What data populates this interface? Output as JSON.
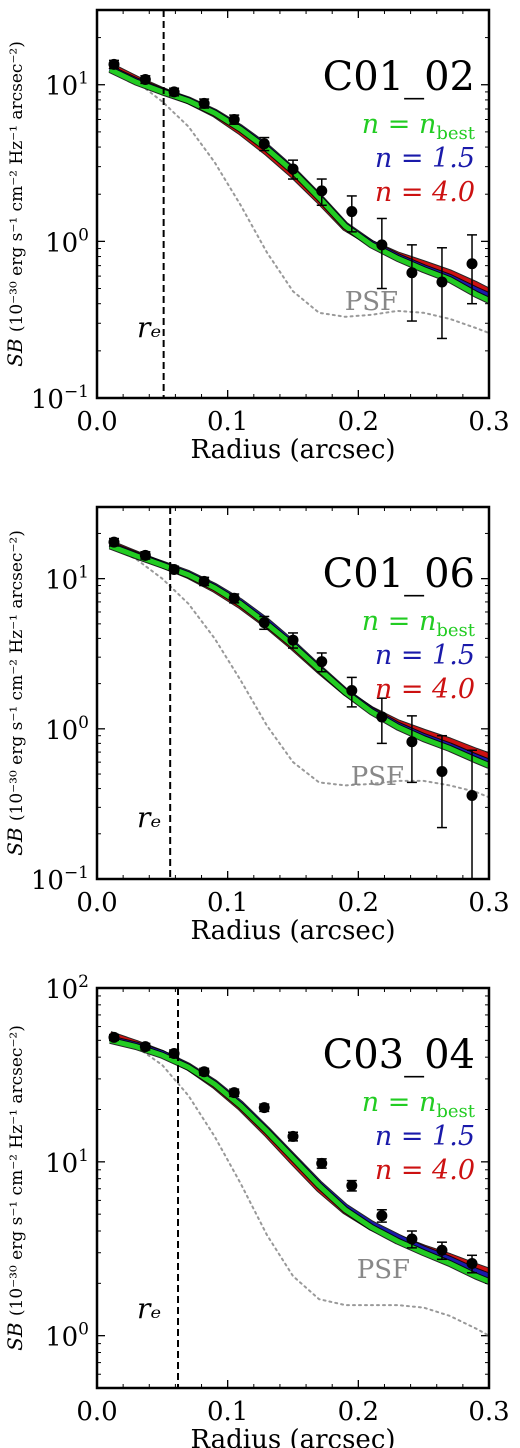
{
  "chart_data": [
    {
      "type": "line",
      "panel_label": "C01_02",
      "xlabel": "Radius (arcsec)",
      "ylabel_main": "SB",
      "ylabel_units": "(10⁻³⁰ erg s⁻¹ cm⁻² Hz⁻¹ arcsec⁻²)",
      "xlim": [
        0.0,
        0.3
      ],
      "ylim": [
        0.1,
        30
      ],
      "yscale": "log",
      "xticks": [
        0.0,
        0.1,
        0.2,
        0.3
      ],
      "xtick_labels": [
        "0.0",
        "0.1",
        "0.2",
        "0.3"
      ],
      "yticks": [
        0.1,
        1,
        10
      ],
      "ytick_labels": [
        "10⁻¹",
        "10⁰",
        "10¹"
      ],
      "re": 0.051,
      "re_label": "rₑ",
      "psf_label": "PSF",
      "legend": [
        "n = n_best",
        "n = 1.5",
        "n = 4.0"
      ],
      "legend_colors": [
        "#22cc22",
        "#1a1aaa",
        "#cc1111"
      ],
      "points": {
        "x": [
          0.013,
          0.037,
          0.059,
          0.082,
          0.105,
          0.128,
          0.15,
          0.172,
          0.195,
          0.218,
          0.241,
          0.264,
          0.287
        ],
        "y": [
          13.5,
          10.8,
          9.0,
          7.6,
          6.0,
          4.2,
          2.9,
          2.1,
          1.55,
          0.95,
          0.63,
          0.55,
          0.72
        ],
        "yerr_low": [
          0.8,
          0.6,
          0.5,
          0.5,
          0.4,
          0.4,
          0.4,
          0.4,
          0.4,
          0.45,
          0.32,
          0.31,
          0.32
        ],
        "yerr_high": [
          0.8,
          0.6,
          0.5,
          0.5,
          0.4,
          0.4,
          0.4,
          0.4,
          0.4,
          0.45,
          0.32,
          0.36,
          0.38
        ]
      },
      "series": [
        {
          "name": "n = n_best",
          "color": "#22cc22",
          "x": [
            0.01,
            0.03,
            0.05,
            0.07,
            0.09,
            0.11,
            0.13,
            0.15,
            0.17,
            0.19,
            0.21,
            0.23,
            0.25,
            0.27,
            0.29,
            0.3
          ],
          "y": [
            12.5,
            10.4,
            9.0,
            7.9,
            6.6,
            5.2,
            3.9,
            2.8,
            1.9,
            1.25,
            0.95,
            0.78,
            0.66,
            0.57,
            0.46,
            0.42
          ]
        },
        {
          "name": "n = 1.5",
          "color": "#1a1aaa",
          "x": [
            0.01,
            0.03,
            0.05,
            0.07,
            0.09,
            0.11,
            0.13,
            0.15,
            0.17,
            0.19,
            0.21,
            0.23,
            0.25,
            0.27,
            0.29,
            0.3
          ],
          "y": [
            12.7,
            10.6,
            9.1,
            8.0,
            6.7,
            5.3,
            4.0,
            2.85,
            1.93,
            1.27,
            0.97,
            0.8,
            0.68,
            0.59,
            0.49,
            0.45
          ]
        },
        {
          "name": "n = 4.0",
          "color": "#cc1111",
          "x": [
            0.01,
            0.03,
            0.05,
            0.07,
            0.09,
            0.11,
            0.13,
            0.15,
            0.17,
            0.19,
            0.21,
            0.23,
            0.25,
            0.27,
            0.29,
            0.3
          ],
          "y": [
            13.2,
            10.9,
            9.2,
            7.9,
            6.5,
            5.0,
            3.7,
            2.65,
            1.82,
            1.22,
            0.97,
            0.82,
            0.72,
            0.63,
            0.53,
            0.48
          ]
        },
        {
          "name": "PSF",
          "color": "#999999",
          "x": [
            0.01,
            0.03,
            0.05,
            0.07,
            0.09,
            0.11,
            0.13,
            0.15,
            0.17,
            0.19,
            0.21,
            0.23,
            0.25,
            0.27,
            0.29,
            0.3
          ],
          "y": [
            13.0,
            10.5,
            7.8,
            5.4,
            3.2,
            1.7,
            0.85,
            0.48,
            0.35,
            0.33,
            0.34,
            0.36,
            0.35,
            0.32,
            0.28,
            0.26
          ]
        }
      ]
    },
    {
      "type": "line",
      "panel_label": "C01_06",
      "xlabel": "Radius (arcsec)",
      "ylabel_main": "SB",
      "ylabel_units": "(10⁻³⁰ erg s⁻¹ cm⁻² Hz⁻¹ arcsec⁻²)",
      "xlim": [
        0.0,
        0.3
      ],
      "ylim": [
        0.1,
        30
      ],
      "yscale": "log",
      "xticks": [
        0.0,
        0.1,
        0.2,
        0.3
      ],
      "xtick_labels": [
        "0.0",
        "0.1",
        "0.2",
        "0.3"
      ],
      "yticks": [
        0.1,
        1,
        10
      ],
      "ytick_labels": [
        "10⁻¹",
        "10⁰",
        "10¹"
      ],
      "re": 0.056,
      "re_label": "rₑ",
      "psf_label": "PSF",
      "legend": [
        "n = n_best",
        "n = 1.5",
        "n = 4.0"
      ],
      "legend_colors": [
        "#22cc22",
        "#1a1aaa",
        "#cc1111"
      ],
      "points": {
        "x": [
          0.013,
          0.037,
          0.059,
          0.082,
          0.105,
          0.128,
          0.15,
          0.172,
          0.195,
          0.218,
          0.241,
          0.264,
          0.287
        ],
        "y": [
          17.5,
          14.3,
          11.5,
          9.6,
          7.4,
          5.1,
          3.9,
          2.8,
          1.8,
          1.2,
          0.82,
          0.52,
          0.36
        ],
        "yerr_low": [
          1.0,
          0.8,
          0.6,
          0.6,
          0.5,
          0.5,
          0.45,
          0.4,
          0.4,
          0.4,
          0.38,
          0.3,
          0.26
        ],
        "yerr_high": [
          1.0,
          0.8,
          0.6,
          0.6,
          0.5,
          0.5,
          0.45,
          0.4,
          0.4,
          0.4,
          0.4,
          0.38,
          0.36
        ]
      },
      "series": [
        {
          "name": "n = n_best",
          "color": "#22cc22",
          "x": [
            0.01,
            0.03,
            0.05,
            0.07,
            0.09,
            0.11,
            0.13,
            0.15,
            0.17,
            0.19,
            0.21,
            0.23,
            0.25,
            0.27,
            0.29,
            0.3
          ],
          "y": [
            16.5,
            14.2,
            12.3,
            10.6,
            8.7,
            6.8,
            5.0,
            3.6,
            2.5,
            1.75,
            1.3,
            1.03,
            0.86,
            0.74,
            0.62,
            0.57
          ]
        },
        {
          "name": "n = 1.5",
          "color": "#1a1aaa",
          "x": [
            0.01,
            0.03,
            0.05,
            0.07,
            0.09,
            0.11,
            0.13,
            0.15,
            0.17,
            0.19,
            0.21,
            0.23,
            0.25,
            0.27,
            0.29,
            0.3
          ],
          "y": [
            16.8,
            14.4,
            12.5,
            10.8,
            8.9,
            7.0,
            5.2,
            3.7,
            2.55,
            1.78,
            1.33,
            1.06,
            0.89,
            0.77,
            0.65,
            0.6
          ]
        },
        {
          "name": "n = 4.0",
          "color": "#cc1111",
          "x": [
            0.01,
            0.03,
            0.05,
            0.07,
            0.09,
            0.11,
            0.13,
            0.15,
            0.17,
            0.19,
            0.21,
            0.23,
            0.25,
            0.27,
            0.29,
            0.3
          ],
          "y": [
            17.2,
            14.6,
            12.4,
            10.5,
            8.5,
            6.6,
            4.9,
            3.5,
            2.45,
            1.75,
            1.34,
            1.1,
            0.95,
            0.83,
            0.71,
            0.66
          ]
        },
        {
          "name": "PSF",
          "color": "#999999",
          "x": [
            0.01,
            0.03,
            0.05,
            0.07,
            0.09,
            0.11,
            0.13,
            0.15,
            0.17,
            0.19,
            0.21,
            0.23,
            0.25,
            0.27,
            0.29,
            0.3
          ],
          "y": [
            16.5,
            13.5,
            10.0,
            6.8,
            4.0,
            2.1,
            1.05,
            0.6,
            0.44,
            0.42,
            0.43,
            0.45,
            0.45,
            0.42,
            0.38,
            0.35
          ]
        }
      ]
    },
    {
      "type": "line",
      "panel_label": "C03_04",
      "xlabel": "Radius (arcsec)",
      "ylabel_main": "SB",
      "ylabel_units": "(10⁻³⁰ erg s⁻¹ cm⁻² Hz⁻¹ arcsec⁻²)",
      "xlim": [
        0.0,
        0.3
      ],
      "ylim": [
        0.5,
        100
      ],
      "yscale": "log",
      "xticks": [
        0.0,
        0.1,
        0.2,
        0.3
      ],
      "xtick_labels": [
        "0.0",
        "0.1",
        "0.2",
        "0.3"
      ],
      "yticks": [
        1,
        10,
        100
      ],
      "ytick_labels": [
        "10⁰",
        "10¹",
        "10²"
      ],
      "re": 0.062,
      "re_label": "rₑ",
      "psf_label": "PSF",
      "legend": [
        "n = n_best",
        "n = 1.5",
        "n = 4.0"
      ],
      "legend_colors": [
        "#22cc22",
        "#1a1aaa",
        "#cc1111"
      ],
      "points": {
        "x": [
          0.013,
          0.037,
          0.059,
          0.082,
          0.105,
          0.128,
          0.15,
          0.172,
          0.195,
          0.218,
          0.241,
          0.264,
          0.287
        ],
        "y": [
          52,
          46,
          42,
          33,
          25,
          20.5,
          14,
          9.8,
          7.3,
          4.9,
          3.6,
          3.1,
          2.6
        ],
        "yerr_low": [
          2,
          2,
          2,
          1.5,
          1.2,
          1.0,
          0.8,
          0.6,
          0.5,
          0.4,
          0.4,
          0.35,
          0.3
        ],
        "yerr_high": [
          2,
          2,
          2,
          1.5,
          1.2,
          1.0,
          0.8,
          0.6,
          0.5,
          0.4,
          0.4,
          0.35,
          0.3
        ]
      },
      "series": [
        {
          "name": "n = n_best",
          "color": "#22cc22",
          "x": [
            0.01,
            0.03,
            0.05,
            0.07,
            0.09,
            0.11,
            0.13,
            0.15,
            0.17,
            0.19,
            0.21,
            0.23,
            0.25,
            0.27,
            0.29,
            0.3
          ],
          "y": [
            50,
            46,
            41,
            35,
            28,
            21,
            15,
            10.5,
            7.3,
            5.3,
            4.2,
            3.5,
            3.0,
            2.6,
            2.2,
            2.05
          ]
        },
        {
          "name": "n = 1.5",
          "color": "#1a1aaa",
          "x": [
            0.01,
            0.03,
            0.05,
            0.07,
            0.09,
            0.11,
            0.13,
            0.15,
            0.17,
            0.19,
            0.21,
            0.23,
            0.25,
            0.27,
            0.29,
            0.3
          ],
          "y": [
            51,
            47,
            42,
            35.5,
            28.5,
            21.5,
            15.3,
            10.7,
            7.5,
            5.5,
            4.4,
            3.7,
            3.15,
            2.75,
            2.35,
            2.2
          ]
        },
        {
          "name": "n = 4.0",
          "color": "#cc1111",
          "x": [
            0.01,
            0.03,
            0.05,
            0.07,
            0.09,
            0.11,
            0.13,
            0.15,
            0.17,
            0.19,
            0.21,
            0.23,
            0.25,
            0.27,
            0.29,
            0.3
          ],
          "y": [
            54,
            48,
            42,
            35,
            27.5,
            20.5,
            14.5,
            10.0,
            7.0,
            5.2,
            4.2,
            3.65,
            3.2,
            2.85,
            2.5,
            2.35
          ]
        },
        {
          "name": "PSF",
          "color": "#999999",
          "x": [
            0.01,
            0.03,
            0.05,
            0.07,
            0.09,
            0.11,
            0.13,
            0.15,
            0.17,
            0.19,
            0.21,
            0.23,
            0.25,
            0.27,
            0.29,
            0.3
          ],
          "y": [
            52,
            46,
            36,
            24,
            14,
            7.5,
            3.8,
            2.2,
            1.62,
            1.5,
            1.5,
            1.5,
            1.45,
            1.3,
            1.1,
            1.0
          ]
        }
      ]
    }
  ]
}
